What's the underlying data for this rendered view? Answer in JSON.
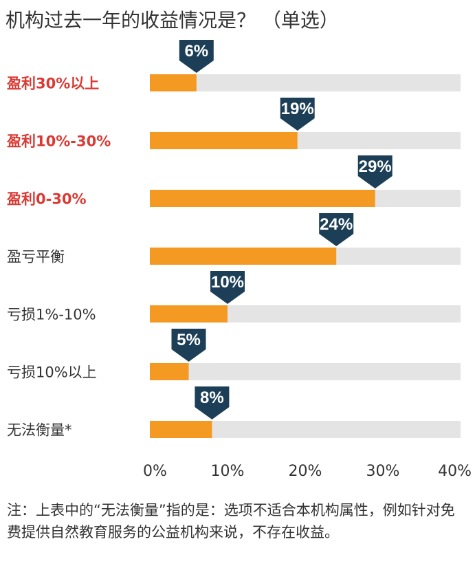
{
  "title": "机构过去一年的收益情况是？ （单选）",
  "note": "注：上表中的“无法衡量”指的是：选项不适合本机构属性，例如针对免费提供自然教育服务的公益机构来说，不存在收益。",
  "colors": {
    "bar": "#F49A22",
    "track": "#E4E4E4",
    "callout": "#1C3F57",
    "highlight_label": "#D93A34",
    "normal_label": "#333333"
  },
  "chart_data": {
    "type": "bar",
    "orientation": "horizontal",
    "title": "机构过去一年的收益情况是？ （单选）",
    "categories": [
      "盈利30%以上",
      "盈利10%-30%",
      "盈利0-30%",
      "盈亏平衡",
      "亏损1%-10%",
      "亏损10%以上",
      "无法衡量*"
    ],
    "values": [
      6,
      19,
      29,
      24,
      10,
      5,
      8
    ],
    "value_labels": [
      "6%",
      "19%",
      "29%",
      "24%",
      "10%",
      "5%",
      "8%"
    ],
    "highlighted": [
      true,
      true,
      true,
      false,
      false,
      false,
      false
    ],
    "xlim": [
      0,
      40
    ],
    "x_ticks": [
      "0%",
      "10%",
      "20%",
      "30%",
      "40%"
    ],
    "xlabel": "",
    "ylabel": "",
    "grid": false,
    "legend": "none"
  }
}
